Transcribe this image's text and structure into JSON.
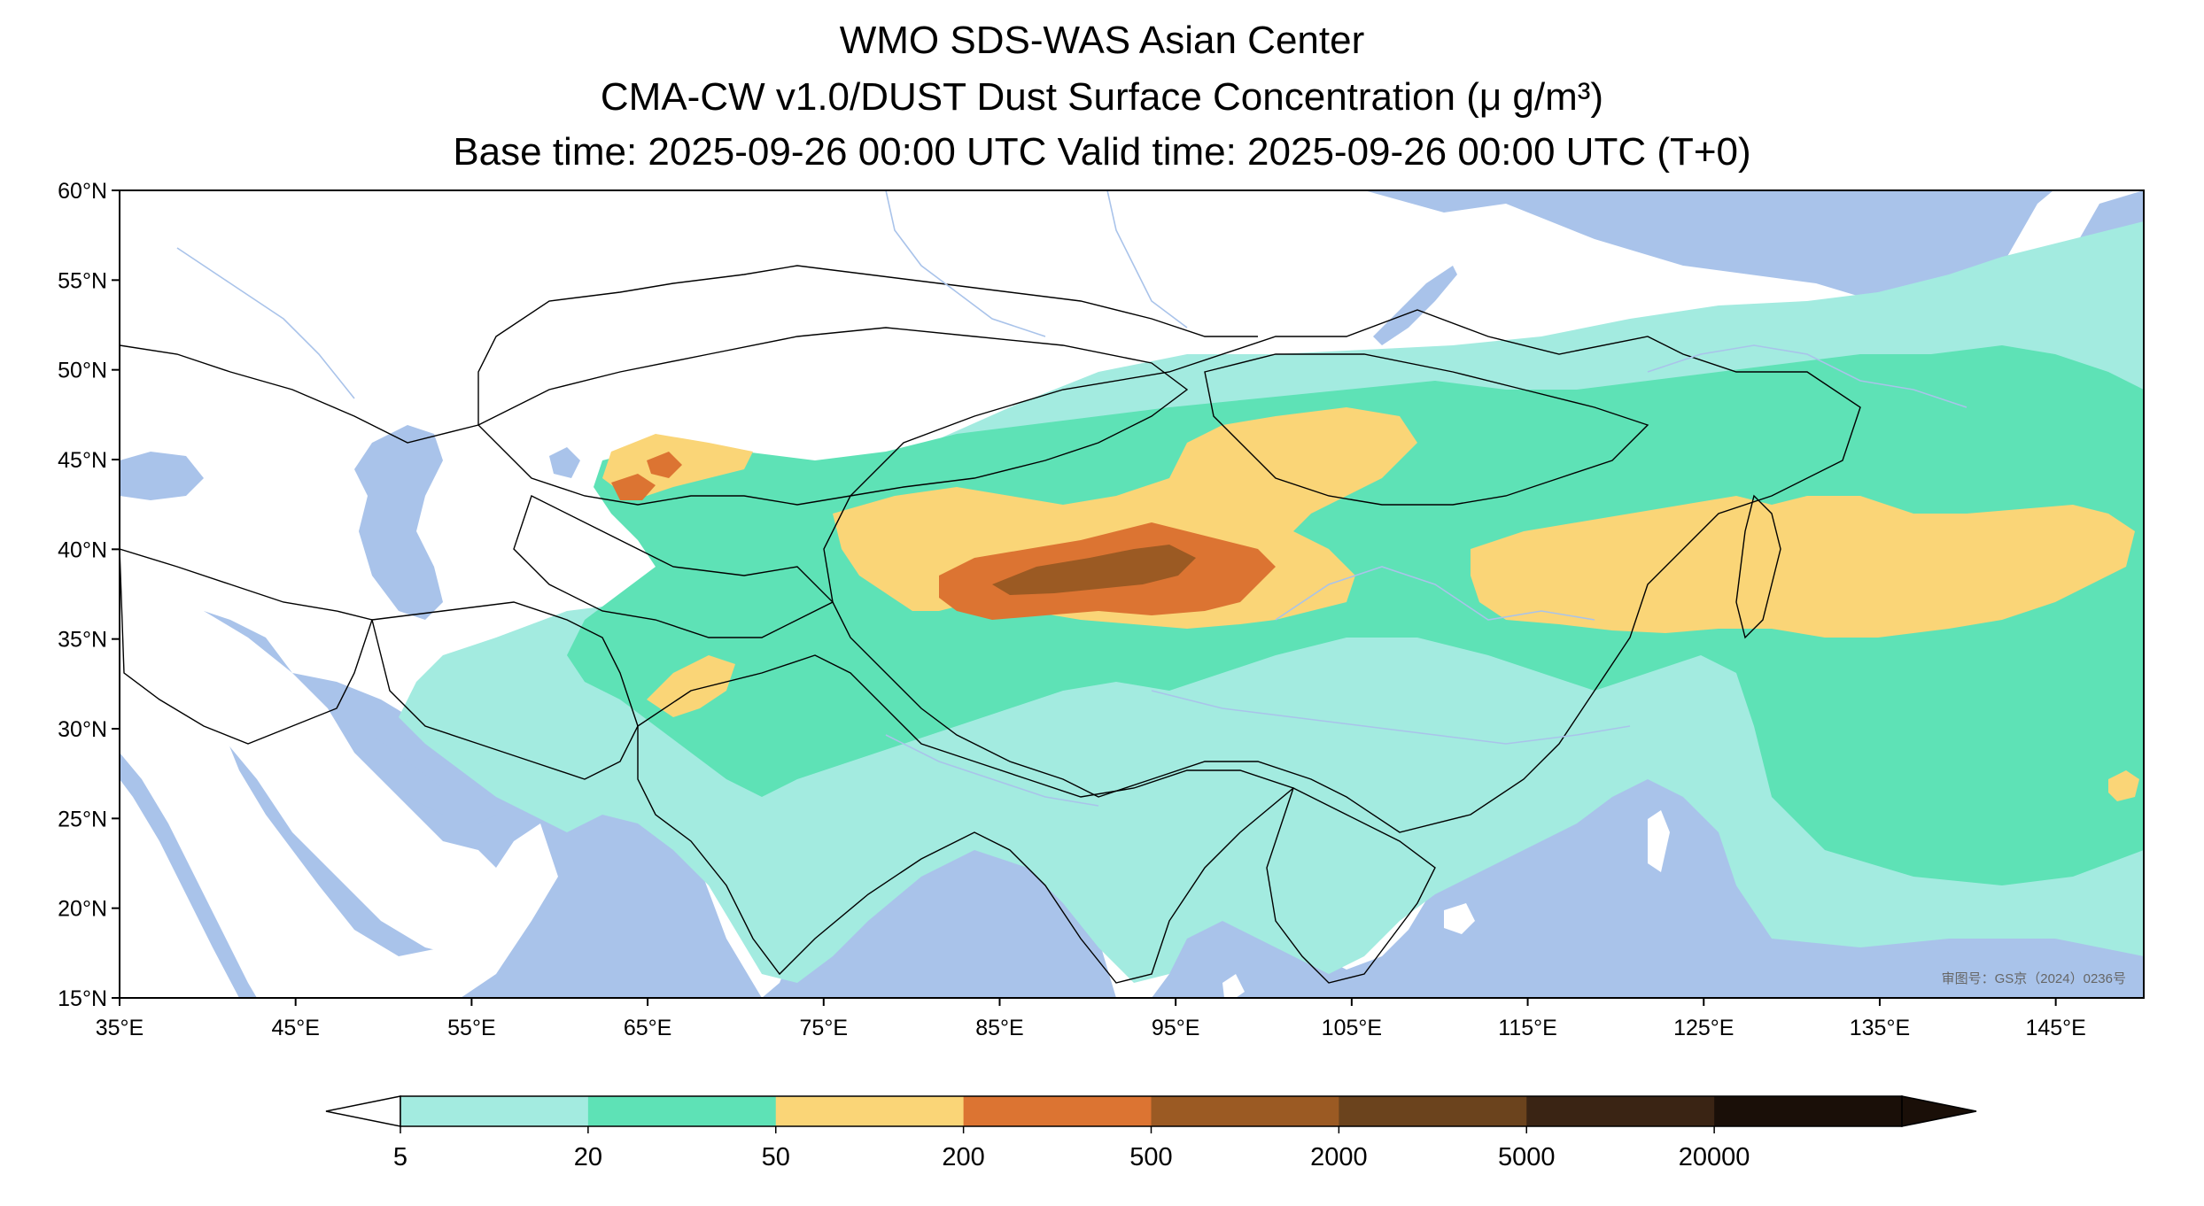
{
  "title": {
    "line1": "WMO SDS-WAS Asian Center",
    "line2": "CMA-CW v1.0/DUST Dust Surface Concentration (μ g/m³)",
    "line3": "Base time: 2025-09-26 00:00 UTC Valid time: 2025-09-26 00:00 UTC (T+0)"
  },
  "axes": {
    "lon_ticks": [
      "35°E",
      "45°E",
      "55°E",
      "65°E",
      "75°E",
      "85°E",
      "95°E",
      "105°E",
      "115°E",
      "125°E",
      "135°E",
      "145°E"
    ],
    "lat_ticks": [
      "60°N",
      "55°N",
      "50°N",
      "45°N",
      "40°N",
      "35°N",
      "30°N",
      "25°N",
      "20°N",
      "15°N"
    ],
    "lon_range": [
      35,
      150
    ],
    "lat_range": [
      15,
      60
    ]
  },
  "colorbar": {
    "levels": [
      "5",
      "20",
      "50",
      "200",
      "500",
      "2000",
      "5000",
      "20000"
    ],
    "colors": [
      "#a3ebe0",
      "#5ee2b6",
      "#fad577",
      "#dc7432",
      "#9b5a23",
      "#6b431d",
      "#3a2414",
      "#1a0f08"
    ],
    "under_color": "#ffffff",
    "over_color": "#1a0f08"
  },
  "map_colors": {
    "ocean": "#a9c3ea",
    "land": "#ffffff",
    "rivers": "#a9c3ea",
    "borders": "#000000"
  },
  "watermark": "审图号：GS京（2024）0236号"
}
